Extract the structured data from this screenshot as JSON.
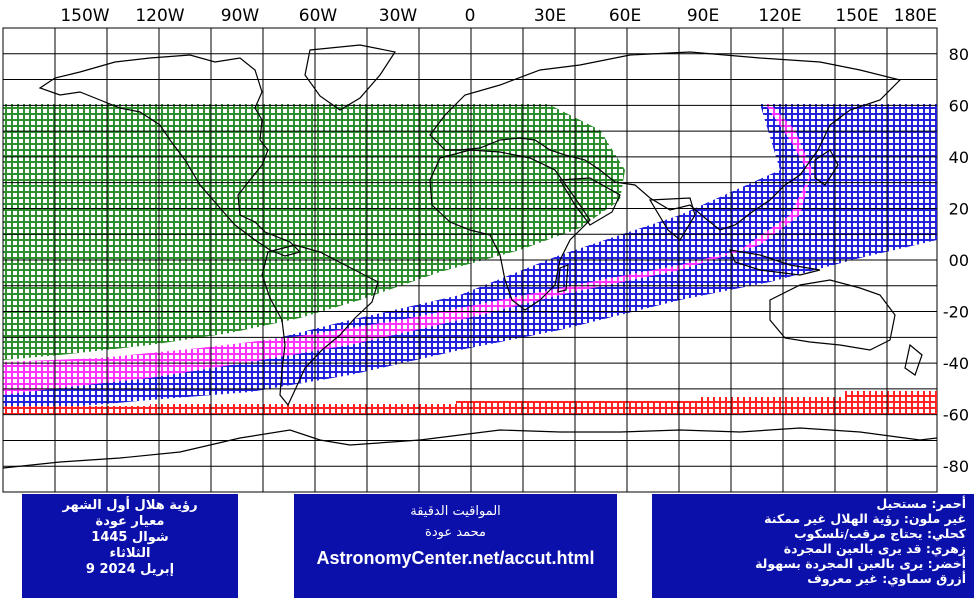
{
  "map": {
    "longitude_labels": [
      "150W",
      "120W",
      "90W",
      "60W",
      "30W",
      "0",
      "30E",
      "60E",
      "90E",
      "120E",
      "150E",
      "180E"
    ],
    "latitude_labels": [
      "80",
      "60",
      "40",
      "20",
      "00",
      "-20",
      "-40",
      "-60",
      "-80"
    ],
    "zones": [
      {
        "name": "green",
        "color": "#2f8f2f",
        "meaning": "easily visible by naked eye"
      },
      {
        "name": "magenta",
        "color": "#ff33ff",
        "meaning": "may be seen by naked eye"
      },
      {
        "name": "blue",
        "color": "#2222dd",
        "meaning": "optical aid needed"
      },
      {
        "name": "red",
        "color": "#ff2222",
        "meaning": "impossible"
      }
    ]
  },
  "left_panel": {
    "line1": "رؤية هلال أول الشهر",
    "line2": "معيار عودة",
    "line3": "شوال 1445",
    "line4": "الثلاثاء",
    "line5": "9 إبريل 2024"
  },
  "middle_panel": {
    "line1": "المواقيت الدقيقة",
    "line2": "محمد عودة",
    "line3": "AstronomyCenter.net/accut.html"
  },
  "legend": {
    "item1": "أحمر: مستحيل",
    "item2": "غير ملون: رؤية الهلال غير ممكنة",
    "item3": "كحلي: يحتاج مرقب/تلسكوب",
    "item4": "زهري: قد يرى بالعين المجردة",
    "item5": "أخضر: يرى بالعين المجردة بسهولة",
    "item6": "أزرق سماوي: غير معروف"
  }
}
